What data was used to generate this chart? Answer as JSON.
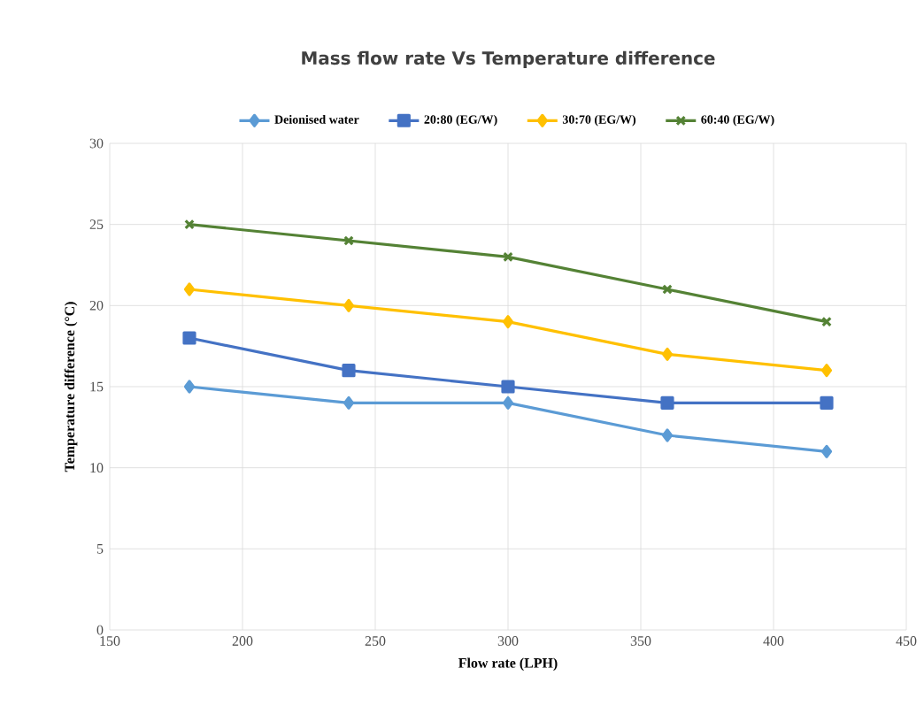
{
  "chart_data": {
    "type": "line",
    "title": "Mass flow rate Vs Temperature difference",
    "xlabel": "Flow rate (LPH)",
    "ylabel": "Temperature difference (°C)",
    "x": [
      180,
      240,
      300,
      360,
      420
    ],
    "series": [
      {
        "name": "Deionised water",
        "color": "#5b9bd5",
        "marker": "diamond",
        "values": [
          15,
          14,
          14,
          12,
          11
        ]
      },
      {
        "name": "20:80 (EG/W)",
        "color": "#4472c4",
        "marker": "square",
        "values": [
          18,
          16,
          15,
          14,
          14
        ]
      },
      {
        "name": "30:70 (EG/W)",
        "color": "#ffc000",
        "marker": "diamond",
        "values": [
          21,
          20,
          19,
          17,
          16
        ]
      },
      {
        "name": "60:40 (EG/W)",
        "color": "#548235",
        "marker": "cross",
        "values": [
          25,
          24,
          23,
          21,
          19
        ]
      }
    ],
    "xlim": [
      150,
      450
    ],
    "xticks": [
      150,
      200,
      250,
      300,
      350,
      400,
      450
    ],
    "ylim": [
      0,
      30
    ],
    "yticks": [
      0,
      5,
      10,
      15,
      20,
      25,
      30
    ],
    "grid": true,
    "legend": "top",
    "line_style": "solid"
  }
}
